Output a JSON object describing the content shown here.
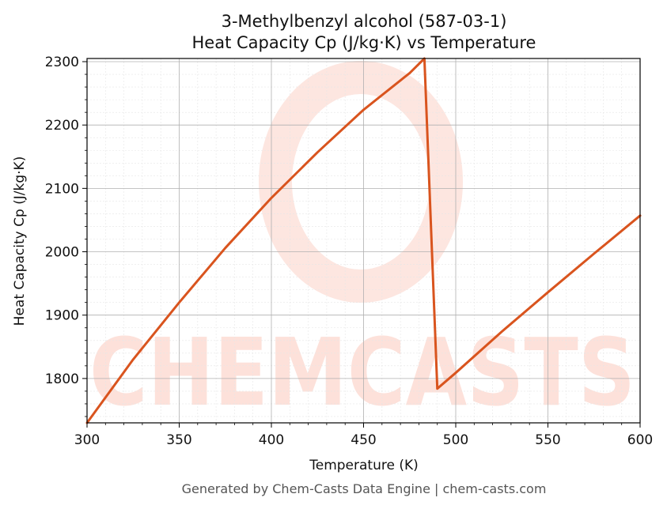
{
  "chart_data": {
    "type": "line",
    "title_line1": "3-Methylbenzyl alcohol (587-03-1)",
    "title_line2": "Heat Capacity Cp (J/kg·K) vs Temperature",
    "xlabel": "Temperature (K)",
    "ylabel": "Heat Capacity Cp (J/kg·K)",
    "xlim": [
      300,
      600
    ],
    "ylim": [
      1730,
      2305
    ],
    "x_ticks": [
      300,
      350,
      400,
      450,
      500,
      550,
      600
    ],
    "y_ticks": [
      1800,
      1900,
      2000,
      2100,
      2200,
      2300
    ],
    "grid": true,
    "series": [
      {
        "color": "#d9541e",
        "x": [
          300,
          325,
          350,
          375,
          400,
          425,
          450,
          475,
          483,
          490,
          500,
          525,
          550,
          575,
          600
        ],
        "y": [
          1730,
          1830,
          1920,
          2006,
          2085,
          2157,
          2224,
          2282,
          2305,
          1784,
          1809,
          1874,
          1936,
          1997,
          2057
        ]
      }
    ]
  },
  "watermark": {
    "text": "CHEMCASTS",
    "color": "#fde1da"
  },
  "footer": "Generated by Chem-Casts Data Engine | chem-casts.com"
}
